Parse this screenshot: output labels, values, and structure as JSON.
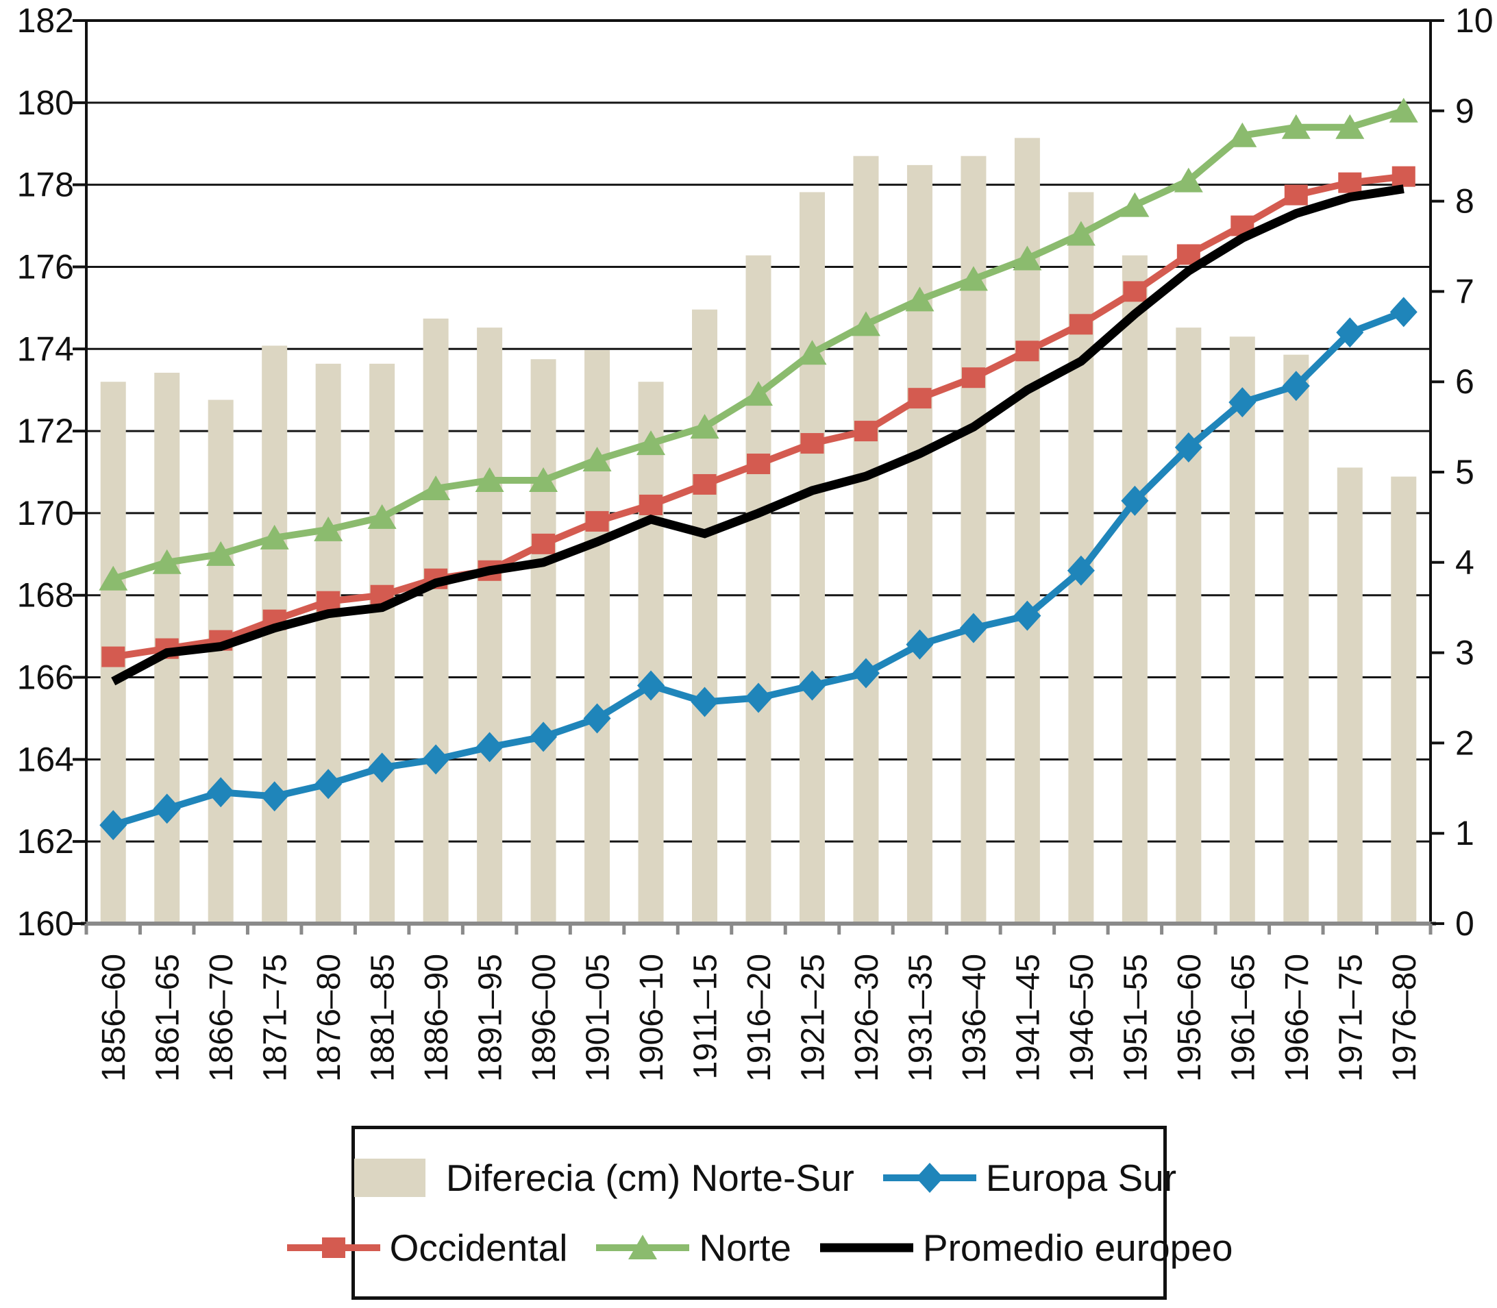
{
  "chart_data": {
    "type": "bar+line combo, dual axis",
    "title": "",
    "categories": [
      "1856–60",
      "1861–65",
      "1866–70",
      "1871–75",
      "1876–80",
      "1881–85",
      "1886–90",
      "1891–95",
      "1896–00",
      "1901–05",
      "1906–10",
      "1911–15",
      "1916–20",
      "1921–25",
      "1926–30",
      "1931–35",
      "1936–40",
      "1941–45",
      "1946–50",
      "1951–55",
      "1956–60",
      "1961–65",
      "1966–70",
      "1971–75",
      "1976–80"
    ],
    "series": [
      {
        "name": "Diferecia (cm) Norte-Sur",
        "type": "bar",
        "axis": "right",
        "marker": "none",
        "color": "#DCD6C2",
        "values": [
          6.0,
          6.1,
          5.8,
          6.4,
          6.2,
          6.2,
          6.7,
          6.6,
          6.25,
          6.35,
          6.0,
          6.8,
          7.4,
          8.1,
          8.5,
          8.4,
          8.5,
          8.7,
          8.1,
          7.4,
          6.6,
          6.5,
          6.3,
          5.05,
          4.95
        ]
      },
      {
        "name": "Europa Sur",
        "type": "line",
        "axis": "left",
        "marker": "diamond",
        "color": "#1F85BA",
        "values": [
          162.4,
          162.8,
          163.2,
          163.1,
          163.4,
          163.8,
          164.0,
          164.3,
          164.55,
          165.0,
          165.8,
          165.4,
          165.5,
          165.8,
          166.1,
          166.8,
          167.2,
          167.5,
          168.6,
          170.3,
          171.6,
          172.7,
          173.1,
          174.4,
          174.9
        ]
      },
      {
        "name": "Occidental",
        "type": "line",
        "axis": "left",
        "marker": "square",
        "color": "#D45B50",
        "values": [
          166.5,
          166.7,
          166.9,
          167.4,
          167.85,
          168.0,
          168.4,
          168.6,
          169.25,
          169.8,
          170.2,
          170.7,
          171.2,
          171.7,
          172.0,
          172.8,
          173.3,
          173.95,
          174.6,
          175.4,
          176.3,
          177.0,
          177.75,
          178.05,
          178.2
        ]
      },
      {
        "name": "Norte",
        "type": "line",
        "axis": "left",
        "marker": "triangle",
        "color": "#8BBB6E",
        "values": [
          168.4,
          168.8,
          169.0,
          169.4,
          169.6,
          169.9,
          170.6,
          170.8,
          170.8,
          171.3,
          171.7,
          172.1,
          172.9,
          173.9,
          174.6,
          175.2,
          175.7,
          176.2,
          176.8,
          177.5,
          178.1,
          179.2,
          179.4,
          179.4,
          179.8
        ]
      },
      {
        "name": "Promedio europeo",
        "type": "line",
        "axis": "left",
        "marker": "none",
        "color": "#000000",
        "values": [
          165.9,
          166.6,
          166.75,
          167.2,
          167.55,
          167.7,
          168.3,
          168.6,
          168.8,
          169.3,
          169.85,
          169.5,
          170.0,
          170.55,
          170.9,
          171.45,
          172.1,
          173.0,
          173.7,
          174.85,
          175.9,
          176.7,
          177.3,
          177.7,
          177.9
        ]
      }
    ],
    "left_axis": {
      "min": 160,
      "max": 182,
      "tick_step": 2,
      "ticks": [
        182,
        180,
        178,
        176,
        174,
        172,
        170,
        168,
        166,
        164,
        162,
        160
      ],
      "tick_labels": [
        "182",
        "180",
        "178",
        "176",
        "174",
        "172",
        "170",
        "168",
        "166",
        "164",
        "162",
        "160"
      ]
    },
    "right_axis": {
      "min": 0,
      "max": 10,
      "tick_step": 1,
      "ticks": [
        10,
        9,
        8,
        7,
        6,
        5,
        4,
        3,
        2,
        1,
        0
      ],
      "tick_labels": [
        "10",
        "9",
        "8",
        "7",
        "6",
        "5",
        "4",
        "3",
        "2",
        "1",
        "0"
      ]
    },
    "grid": {
      "horizontal": true,
      "step_left_axis_units": 2,
      "color": "#151515"
    },
    "legend_position": "bottom"
  },
  "legend": {
    "rows": [
      [
        {
          "series": 0,
          "label": "Diferecia (cm) Norte-Sur"
        },
        {
          "series": 1,
          "label": "Europa Sur"
        }
      ],
      [
        {
          "series": 2,
          "label": "Occidental"
        },
        {
          "series": 3,
          "label": "Norte"
        },
        {
          "series": 4,
          "label": "Promedio europeo"
        }
      ]
    ]
  },
  "colors": {
    "bar_fill": "#DCD6C2",
    "blue_line": "#1F85BA",
    "red_line": "#D45B50",
    "green_line": "#8BBB6E",
    "black_line": "#000000",
    "grid_line": "#151515",
    "axis_frame": "#111111",
    "bottom_axis": "#8A8A8A",
    "text": "#111111"
  }
}
